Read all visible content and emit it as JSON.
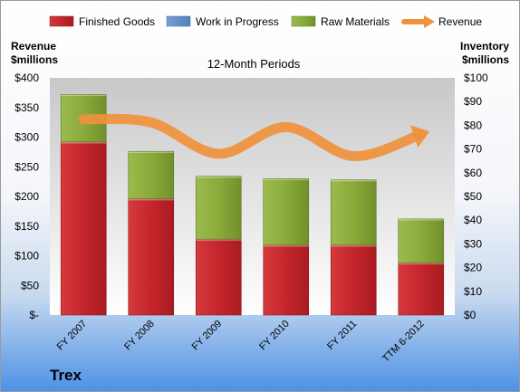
{
  "chart_data": {
    "type": "bar",
    "stacked": true,
    "title": "12-Month Periods",
    "categories": [
      "FY 2007",
      "FY 2008",
      "FY 2009",
      "FY 2010",
      "FY 2011",
      "TTM 6-2012"
    ],
    "left_axis": {
      "label_line1": "Revenue",
      "label_line2": "$millions",
      "range": [
        0,
        400
      ],
      "ticks": [
        0,
        50,
        100,
        150,
        200,
        250,
        300,
        350,
        400
      ],
      "tick_labels": [
        "$-",
        "$50",
        "$100",
        "$150",
        "$200",
        "$250",
        "$300",
        "$350",
        "$400"
      ]
    },
    "right_axis": {
      "label_line1": "Inventory",
      "label_line2": "$millions",
      "range": [
        0,
        100
      ],
      "ticks": [
        0,
        10,
        20,
        30,
        40,
        50,
        60,
        70,
        80,
        90,
        100
      ],
      "tick_labels": [
        "$0",
        "$10",
        "$20",
        "$30",
        "$40",
        "$50",
        "$60",
        "$70",
        "$80",
        "$90",
        "$100"
      ]
    },
    "series": [
      {
        "name": "Finished Goods",
        "axis": "right",
        "color": "#c0262c",
        "values": [
          73,
          49,
          32,
          29.5,
          29.5,
          22
        ]
      },
      {
        "name": "Work in Progress",
        "axis": "right",
        "color": "#4f81bd",
        "values": [
          0,
          0,
          0,
          0,
          0,
          0
        ]
      },
      {
        "name": "Raw Materials",
        "axis": "right",
        "color": "#8aaa3a",
        "values": [
          20,
          20,
          26.5,
          28,
          27.5,
          18.5
        ]
      },
      {
        "name": "Revenue",
        "axis": "left",
        "type": "line",
        "color": "#f0913c",
        "values": [
          330,
          325,
          272,
          317,
          268,
          305
        ]
      }
    ],
    "legend_position": "top",
    "grid": false
  },
  "brand": "Trex"
}
